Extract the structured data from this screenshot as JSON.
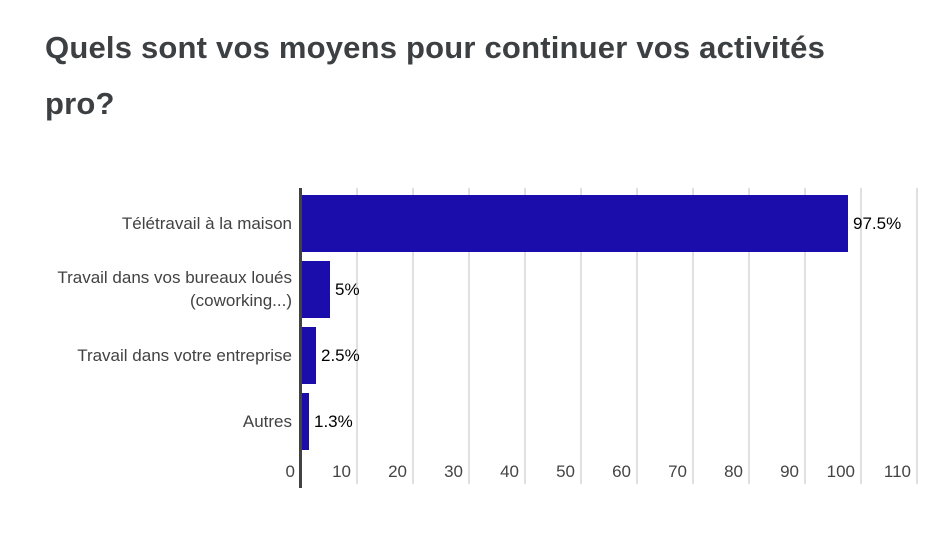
{
  "chart_data": {
    "type": "bar",
    "orientation": "horizontal",
    "title": "Quels sont vos moyens pour continuer vos activités pro?",
    "categories": [
      "Télétravail à la maison",
      "Travail dans vos bureaux loués (coworking...)",
      "Travail dans votre entreprise",
      "Autres"
    ],
    "values": [
      97.5,
      5,
      2.5,
      1.3
    ],
    "value_labels": [
      "97.5%",
      "5%",
      "2.5%",
      "1.3%"
    ],
    "x_ticks": [
      0,
      10,
      20,
      30,
      40,
      50,
      60,
      70,
      80,
      90,
      100,
      110
    ],
    "xlim": [
      0,
      110
    ],
    "grid": true,
    "legend": false,
    "colors": {
      "bar": "#1a0dab",
      "axis_line": "#424242",
      "gridline": "#e0e0e0",
      "title": "#3c4043",
      "category_label": "#424242",
      "tick_label": "#444444",
      "value_label": "#000000"
    }
  }
}
